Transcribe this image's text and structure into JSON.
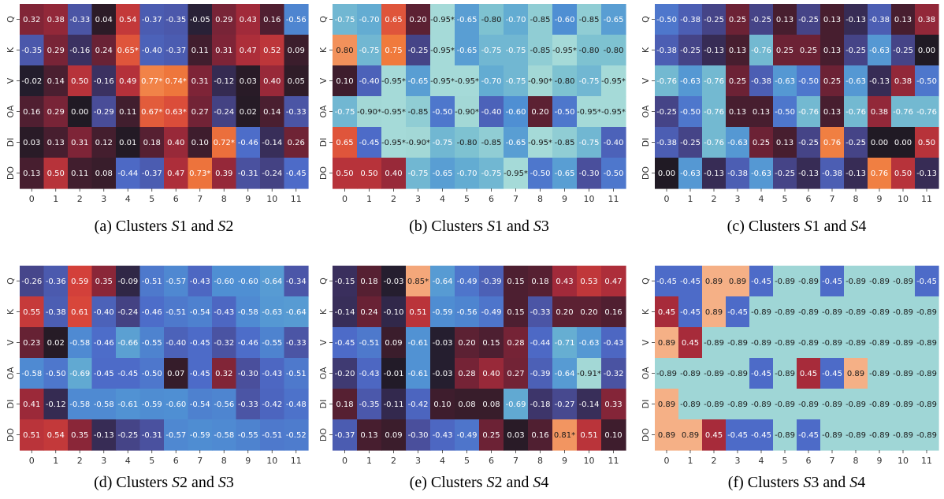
{
  "colorscale": {
    "stops": [
      [
        -1.0,
        "#a6dcda"
      ],
      [
        -0.9,
        "#a3d8d6"
      ],
      [
        -0.8,
        "#7ec2d1"
      ],
      [
        -0.7,
        "#63acd2"
      ],
      [
        -0.6,
        "#4f8fd3"
      ],
      [
        -0.45,
        "#4d6bc8"
      ],
      [
        -0.3,
        "#4a4f9c"
      ],
      [
        -0.15,
        "#3a2f5d"
      ],
      [
        0.0,
        "#201a24"
      ],
      [
        0.15,
        "#4d1f31"
      ],
      [
        0.3,
        "#7b2437"
      ],
      [
        0.45,
        "#a72b3a"
      ],
      [
        0.6,
        "#d6423a"
      ],
      [
        0.75,
        "#f07a3c"
      ],
      [
        0.85,
        "#f4a77a"
      ],
      [
        1.0,
        "#f8c9a8"
      ]
    ]
  },
  "chart_data": [
    {
      "type": "heatmap",
      "caption_prefix": "(a) Clusters ",
      "caption_a": "S",
      "caption_a_num": "1",
      "caption_mid": " and ",
      "caption_b": "S",
      "caption_b_num": "2",
      "rows": [
        "Q",
        "K",
        "V",
        "OA",
        "DI",
        "DO"
      ],
      "cols": [
        "0",
        "1",
        "2",
        "3",
        "4",
        "5",
        "6",
        "7",
        "8",
        "9",
        "10",
        "11"
      ],
      "values": [
        [
          0.32,
          0.38,
          -0.33,
          0.04,
          0.54,
          -0.37,
          -0.35,
          -0.05,
          0.29,
          0.43,
          0.16,
          -0.56
        ],
        [
          -0.35,
          0.29,
          -0.16,
          0.24,
          0.65,
          -0.4,
          -0.37,
          0.11,
          0.31,
          0.47,
          0.52,
          0.09
        ],
        [
          -0.02,
          0.14,
          0.5,
          -0.16,
          0.49,
          0.77,
          0.74,
          0.31,
          -0.12,
          0.03,
          0.4,
          0.05
        ],
        [
          0.16,
          0.29,
          0.0,
          -0.29,
          0.11,
          0.67,
          0.63,
          0.27,
          -0.24,
          0.02,
          0.14,
          -0.33
        ],
        [
          0.03,
          0.13,
          0.31,
          0.12,
          0.01,
          0.18,
          0.4,
          0.1,
          0.72,
          -0.46,
          -0.14,
          0.26
        ],
        [
          0.13,
          0.5,
          0.11,
          0.08,
          -0.44,
          -0.37,
          0.47,
          0.73,
          0.39,
          -0.31,
          -0.24,
          -0.45
        ]
      ],
      "stars": [
        [
          0,
          3,
          0
        ],
        [
          1,
          4,
          1
        ],
        [
          2,
          5,
          1
        ],
        [
          2,
          6,
          1
        ],
        [
          3,
          5,
          1
        ],
        [
          3,
          6,
          1
        ],
        [
          4,
          8,
          1
        ],
        [
          5,
          7,
          1
        ]
      ]
    },
    {
      "type": "heatmap",
      "caption_prefix": "(b) Clusters ",
      "caption_a": "S",
      "caption_a_num": "1",
      "caption_mid": " and ",
      "caption_b": "S",
      "caption_b_num": "3",
      "rows": [
        "Q",
        "K",
        "V",
        "OA",
        "DI",
        "DO"
      ],
      "cols": [
        "0",
        "1",
        "2",
        "3",
        "4",
        "5",
        "6",
        "7",
        "8",
        "9",
        "10",
        "11"
      ],
      "values": [
        [
          -0.75,
          -0.7,
          0.65,
          0.2,
          -0.95,
          -0.65,
          -0.8,
          -0.7,
          -0.85,
          -0.6,
          -0.85,
          -0.65
        ],
        [
          0.8,
          -0.75,
          0.75,
          -0.25,
          -0.95,
          -0.65,
          -0.75,
          -0.75,
          -0.85,
          -0.95,
          -0.8,
          -0.8
        ],
        [
          0.1,
          -0.4,
          -0.95,
          -0.65,
          -0.95,
          -0.95,
          -0.7,
          -0.75,
          -0.9,
          -0.8,
          -0.75,
          -0.95
        ],
        [
          -0.75,
          -0.9,
          -0.95,
          -0.85,
          -0.5,
          -0.9,
          -0.4,
          -0.6,
          0.2,
          -0.5,
          -0.95,
          -0.95
        ],
        [
          0.65,
          -0.45,
          -0.95,
          -0.9,
          -0.75,
          -0.8,
          -0.85,
          -0.65,
          -0.95,
          -0.85,
          -0.75,
          -0.4
        ],
        [
          0.5,
          0.5,
          0.4,
          -0.75,
          -0.65,
          -0.7,
          -0.75,
          -0.95,
          -0.5,
          -0.65,
          -0.3,
          -0.5
        ]
      ],
      "stars": [
        [
          0,
          4,
          1
        ],
        [
          1,
          4,
          1
        ],
        [
          1,
          9,
          1
        ],
        [
          2,
          2,
          1
        ],
        [
          2,
          4,
          1
        ],
        [
          2,
          5,
          1
        ],
        [
          2,
          8,
          1
        ],
        [
          2,
          11,
          1
        ],
        [
          3,
          1,
          1
        ],
        [
          3,
          2,
          1
        ],
        [
          3,
          5,
          1
        ],
        [
          3,
          10,
          1
        ],
        [
          3,
          11,
          1
        ],
        [
          4,
          2,
          1
        ],
        [
          4,
          3,
          1
        ],
        [
          4,
          8,
          1
        ],
        [
          5,
          7,
          1
        ]
      ]
    },
    {
      "type": "heatmap",
      "caption_prefix": "(c) Clusters ",
      "caption_a": "S",
      "caption_a_num": "1",
      "caption_mid": " and ",
      "caption_b": "S",
      "caption_b_num": "4",
      "rows": [
        "Q",
        "K",
        "V",
        "OA",
        "DI",
        "DO"
      ],
      "cols": [
        "0",
        "1",
        "2",
        "3",
        "4",
        "5",
        "6",
        "7",
        "8",
        "9",
        "10",
        "11"
      ],
      "values": [
        [
          -0.5,
          -0.38,
          -0.25,
          0.25,
          -0.25,
          0.13,
          -0.25,
          0.13,
          -0.13,
          -0.38,
          0.13,
          0.38
        ],
        [
          -0.38,
          -0.25,
          -0.13,
          0.13,
          -0.76,
          0.25,
          0.25,
          0.13,
          -0.25,
          -0.63,
          -0.25,
          0.0
        ],
        [
          -0.76,
          -0.63,
          -0.76,
          0.25,
          -0.38,
          -0.63,
          -0.5,
          0.25,
          -0.63,
          -0.13,
          0.38,
          -0.5
        ],
        [
          -0.25,
          -0.5,
          -0.76,
          0.13,
          0.13,
          -0.5,
          -0.76,
          0.13,
          -0.76,
          0.38,
          -0.76,
          -0.76
        ],
        [
          -0.38,
          -0.25,
          -0.76,
          -0.63,
          0.25,
          0.13,
          -0.25,
          0.76,
          -0.25,
          0.0,
          0.0,
          0.5
        ],
        [
          0.0,
          -0.63,
          -0.13,
          -0.38,
          -0.63,
          -0.25,
          -0.13,
          -0.38,
          -0.13,
          0.76,
          0.5,
          -0.13
        ]
      ],
      "stars": []
    },
    {
      "type": "heatmap",
      "caption_prefix": "(d) Clusters ",
      "caption_a": "S",
      "caption_a_num": "2",
      "caption_mid": " and ",
      "caption_b": "S",
      "caption_b_num": "3",
      "rows": [
        "Q",
        "K",
        "V",
        "OA",
        "DI",
        "DO"
      ],
      "cols": [
        "0",
        "1",
        "2",
        "3",
        "4",
        "5",
        "6",
        "7",
        "8",
        "9",
        "10",
        "11"
      ],
      "values": [
        [
          -0.26,
          -0.36,
          0.59,
          0.35,
          -0.09,
          -0.51,
          -0.57,
          -0.43,
          -0.6,
          -0.6,
          -0.64,
          -0.34
        ],
        [
          0.55,
          -0.38,
          0.61,
          -0.4,
          -0.24,
          -0.46,
          -0.51,
          -0.54,
          -0.43,
          -0.58,
          -0.63,
          -0.64
        ],
        [
          0.23,
          0.02,
          -0.58,
          -0.46,
          -0.66,
          -0.55,
          -0.4,
          -0.45,
          -0.32,
          -0.46,
          -0.55,
          -0.33
        ],
        [
          -0.58,
          -0.5,
          -0.69,
          -0.45,
          -0.45,
          -0.5,
          0.07,
          -0.45,
          0.32,
          -0.3,
          -0.43,
          -0.51
        ],
        [
          0.41,
          -0.12,
          -0.58,
          -0.58,
          -0.61,
          -0.59,
          -0.6,
          -0.54,
          -0.56,
          -0.33,
          -0.42,
          -0.48
        ],
        [
          0.51,
          0.54,
          0.35,
          -0.13,
          -0.25,
          -0.31,
          -0.57,
          -0.59,
          -0.58,
          -0.55,
          -0.51,
          -0.52
        ]
      ],
      "stars": []
    },
    {
      "type": "heatmap",
      "caption_prefix": "(e) Clusters ",
      "caption_a": "S",
      "caption_a_num": "2",
      "caption_mid": " and ",
      "caption_b": "S",
      "caption_b_num": "4",
      "rows": [
        "Q",
        "K",
        "V",
        "OA",
        "DI",
        "DO"
      ],
      "cols": [
        "0",
        "1",
        "2",
        "3",
        "4",
        "5",
        "6",
        "7",
        "8",
        "9",
        "10",
        "11"
      ],
      "values": [
        [
          -0.15,
          0.18,
          -0.03,
          0.85,
          -0.64,
          -0.49,
          -0.39,
          0.15,
          0.18,
          0.43,
          0.53,
          0.47
        ],
        [
          -0.14,
          0.24,
          -0.1,
          0.51,
          -0.59,
          -0.56,
          -0.49,
          0.15,
          -0.33,
          0.2,
          0.2,
          0.16
        ],
        [
          -0.45,
          -0.51,
          0.09,
          -0.61,
          -0.03,
          0.2,
          0.15,
          0.28,
          -0.44,
          -0.71,
          -0.63,
          -0.43
        ],
        [
          -0.2,
          -0.43,
          -0.01,
          -0.61,
          -0.03,
          0.28,
          0.4,
          0.27,
          -0.39,
          -0.64,
          -0.91,
          -0.32
        ],
        [
          0.18,
          -0.35,
          -0.11,
          -0.42,
          0.1,
          0.08,
          0.08,
          -0.69,
          -0.18,
          -0.27,
          -0.14,
          0.33
        ],
        [
          -0.37,
          0.13,
          0.09,
          -0.3,
          -0.43,
          -0.49,
          0.25,
          0.03,
          0.16,
          0.81,
          0.51,
          0.1
        ]
      ],
      "stars": [
        [
          0,
          3,
          1
        ],
        [
          3,
          10,
          1
        ],
        [
          5,
          9,
          1
        ]
      ]
    },
    {
      "type": "heatmap",
      "caption_prefix": "(f) Clusters ",
      "caption_a": "S",
      "caption_a_num": "3",
      "caption_mid": " and ",
      "caption_b": "S",
      "caption_b_num": "4",
      "rows": [
        "Q",
        "K",
        "V",
        "OA",
        "DI",
        "DO"
      ],
      "cols": [
        "0",
        "1",
        "2",
        "3",
        "4",
        "5",
        "6",
        "7",
        "8",
        "9",
        "10",
        "11"
      ],
      "values": [
        [
          -0.45,
          -0.45,
          0.89,
          0.89,
          -0.45,
          -0.89,
          -0.89,
          -0.45,
          -0.89,
          -0.89,
          -0.89,
          -0.45
        ],
        [
          0.45,
          -0.45,
          0.89,
          -0.45,
          -0.89,
          -0.89,
          -0.89,
          -0.89,
          -0.89,
          -0.89,
          -0.89,
          -0.89
        ],
        [
          0.89,
          0.45,
          -0.89,
          -0.89,
          -0.89,
          -0.89,
          -0.89,
          -0.89,
          -0.89,
          -0.89,
          -0.89,
          -0.89
        ],
        [
          -0.89,
          -0.89,
          -0.89,
          -0.89,
          -0.45,
          -0.89,
          0.45,
          -0.45,
          0.89,
          -0.89,
          -0.89,
          -0.89
        ],
        [
          0.89,
          -0.89,
          -0.89,
          -0.89,
          -0.89,
          -0.89,
          -0.89,
          -0.89,
          -0.89,
          -0.89,
          -0.89,
          -0.89
        ],
        [
          0.89,
          0.89,
          0.45,
          -0.45,
          -0.45,
          -0.89,
          -0.45,
          -0.89,
          -0.89,
          -0.89,
          -0.89,
          -0.89
        ]
      ],
      "stars": []
    }
  ]
}
